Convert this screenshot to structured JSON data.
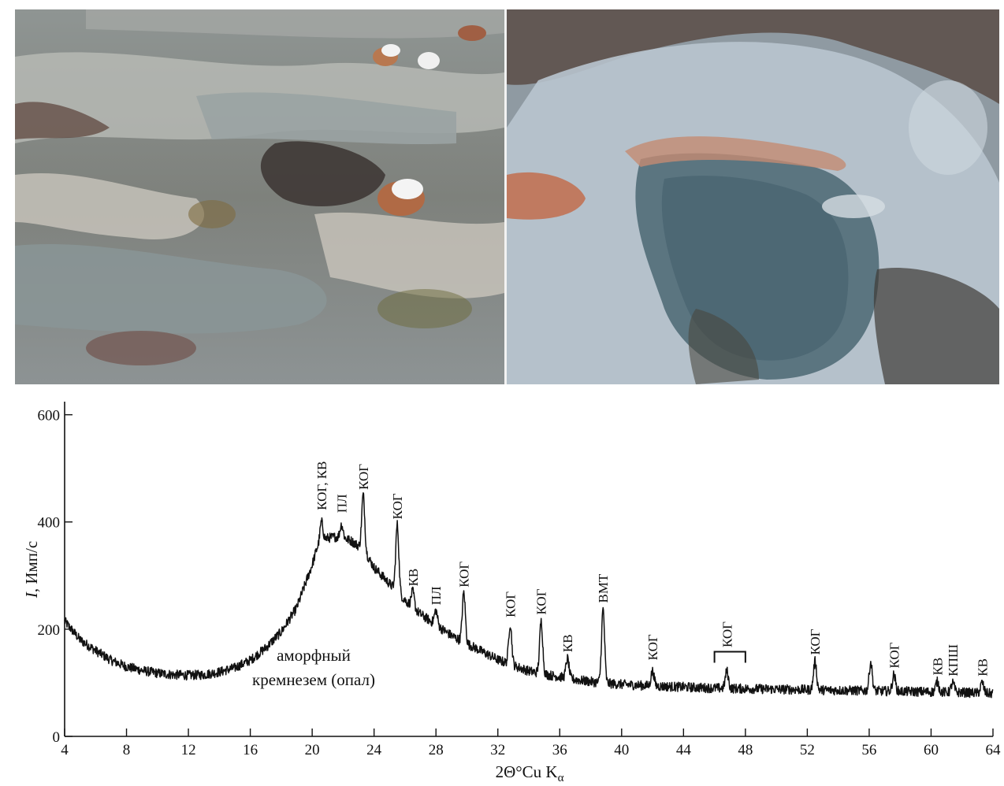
{
  "photos": {
    "left": {
      "description_icon": "hot-spring-terrain-photo"
    },
    "right": {
      "description_icon": "hot-spring-pool-photo"
    }
  },
  "chart_data": {
    "type": "line",
    "xlabel_main": "2Θ°Cu K",
    "xlabel_sub": "α",
    "ylabel_italic": "I",
    "ylabel_rest": ", Имп/с",
    "xlim": [
      4,
      64
    ],
    "ylim": [
      0,
      620
    ],
    "x_ticks": [
      4,
      8,
      12,
      16,
      20,
      24,
      28,
      32,
      36,
      40,
      44,
      48,
      52,
      56,
      60,
      64
    ],
    "y_ticks": [
      0,
      200,
      400,
      600
    ],
    "grid": false,
    "line_color": "#111111",
    "annotation_amorphous": [
      "аморфный",
      "кремнезем (опал)"
    ],
    "profile": {
      "x": [
        4,
        5,
        6,
        7,
        8,
        9,
        10,
        11,
        12,
        13,
        14,
        15,
        16,
        17,
        18,
        19,
        19.5,
        20,
        20.3,
        20.6,
        21,
        21.5,
        22,
        22.5,
        23,
        23.6,
        24,
        24.5,
        25,
        25.8,
        26.5,
        27,
        27.5,
        28,
        28.5,
        29,
        29.5,
        30.2,
        31,
        32,
        33,
        34,
        35,
        36,
        37,
        38,
        39,
        40,
        42,
        44,
        46,
        48,
        50,
        52,
        54,
        56,
        58,
        60,
        62,
        64
      ],
      "y": [
        215,
        180,
        160,
        142,
        130,
        123,
        118,
        115,
        114,
        115,
        120,
        128,
        142,
        165,
        195,
        240,
        280,
        320,
        350,
        365,
        370,
        372,
        370,
        365,
        355,
        335,
        315,
        300,
        285,
        260,
        240,
        228,
        218,
        208,
        198,
        188,
        180,
        170,
        158,
        143,
        132,
        122,
        116,
        111,
        106,
        102,
        99,
        97,
        94,
        92,
        90,
        89,
        88,
        87,
        86,
        85,
        84,
        83,
        82,
        80
      ]
    },
    "peaks": [
      {
        "x": 20.6,
        "y": 400,
        "label": "КОГ, КВ"
      },
      {
        "x": 21.9,
        "y": 395,
        "label": "ПЛ"
      },
      {
        "x": 23.3,
        "y": 450,
        "label": "КОГ"
      },
      {
        "x": 25.5,
        "y": 395,
        "label": "КОГ"
      },
      {
        "x": 26.5,
        "y": 270,
        "label": "КВ"
      },
      {
        "x": 28.0,
        "y": 235,
        "label": "ПЛ"
      },
      {
        "x": 29.8,
        "y": 268,
        "label": "КОГ"
      },
      {
        "x": 32.8,
        "y": 210,
        "label": "КОГ"
      },
      {
        "x": 34.8,
        "y": 215,
        "label": "КОГ"
      },
      {
        "x": 36.5,
        "y": 145,
        "label": "КВ"
      },
      {
        "x": 38.8,
        "y": 237,
        "label": "ВМТ"
      },
      {
        "x": 42.0,
        "y": 122,
        "label": "КОГ"
      },
      {
        "x": 46.8,
        "y": 122,
        "label": "КОГ"
      },
      {
        "x": 52.5,
        "y": 140,
        "label": "КОГ"
      },
      {
        "x": 56.1,
        "y": 138,
        "label": ""
      },
      {
        "x": 57.6,
        "y": 115,
        "label": "КОГ"
      },
      {
        "x": 60.4,
        "y": 102,
        "label": "КВ"
      },
      {
        "x": 61.4,
        "y": 100,
        "label": "КПШ"
      },
      {
        "x": 63.3,
        "y": 100,
        "label": "КВ"
      }
    ],
    "bracket": {
      "x_start": 46.0,
      "x_end": 48.0,
      "y": 158
    }
  }
}
